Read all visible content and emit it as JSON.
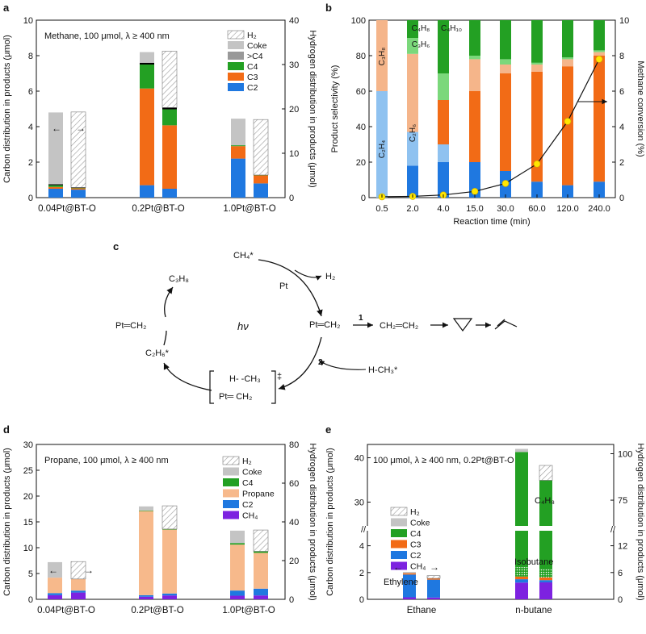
{
  "colors": {
    "H2": "#ffffff",
    "Coke": "#c4c4c4",
    "GtC4": "#000000",
    "C4": "#23a023",
    "C3": "#f26b16",
    "C2": "#1f78e0",
    "Propane": "#f7b98b",
    "CH4": "#7d22e0",
    "C3H8_light": "#f5b58a",
    "C2H6_light": "#8fc2f0",
    "C4H10_light": "#7bd87b",
    "marker": "#ffe600"
  },
  "chart_data": [
    {
      "panel": "a",
      "type": "bar",
      "annotation": "Methane, 100 μmol, λ ≥ 400 nm",
      "ylabel": "Carbon distribution in products (μmol)",
      "y2label": "Hydrogen distribution in products (μmol)",
      "ylim": [
        0,
        10
      ],
      "y2lim": [
        0,
        40
      ],
      "yticks": [
        "0",
        "2",
        "4",
        "6",
        "8",
        "10"
      ],
      "y2ticks": [
        "0",
        "10",
        "20",
        "30",
        "40"
      ],
      "categories": [
        "0.04Pt@BT-O",
        "0.2Pt@BT-O",
        "1.0Pt@BT-O"
      ],
      "legend": [
        "H2",
        "Coke",
        ">C4",
        "C4",
        "C3",
        "C2"
      ],
      "carbon_stacks": [
        {
          "C2": 0.5,
          "C3": 0.1,
          "C4": 0.1,
          "GtC4": 0.05,
          "Coke": 4.05
        },
        {
          "C2": 0.7,
          "C3": 5.45,
          "C4": 1.35,
          "GtC4": 0.1,
          "Coke": 0.6
        },
        {
          "C2": 2.2,
          "C3": 0.7,
          "C4": 0.05,
          "GtC4": 0,
          "Coke": 1.5
        }
      ],
      "hydrogen_stacks": [
        {
          "C2": 1.8,
          "C3": 0.3,
          "C4": 0.1,
          "GtC4": 0.1,
          "H2": 17.0
        },
        {
          "C2": 2.0,
          "C3": 14.3,
          "C4": 3.6,
          "GtC4": 0.4,
          "H2": 12.7
        },
        {
          "C2": 3.2,
          "C3": 1.8,
          "C4": 0.1,
          "GtC4": 0,
          "H2": 12.5
        }
      ],
      "arrow_left": "←",
      "arrow_right": "→"
    },
    {
      "panel": "b",
      "type": "bar+line",
      "xlabel": "Reaction time (min)",
      "ylabel": "Product selectivity (%)",
      "y2label": "Methane conversion (%)",
      "ylim": [
        0,
        100
      ],
      "y2lim": [
        0,
        10
      ],
      "yticks": [
        "0",
        "20",
        "40",
        "60",
        "80",
        "100"
      ],
      "y2ticks": [
        "0",
        "2",
        "4",
        "6",
        "8",
        "10"
      ],
      "categories": [
        "0.5",
        "2.0",
        "4.0",
        "15.0",
        "30.0",
        "60.0",
        "120.0",
        "240.0"
      ],
      "selectivity": [
        {
          "C2": 0,
          "C2H6": 60,
          "C3": 0,
          "C3H8": 40,
          "C4": 0,
          "C4H10": 0
        },
        {
          "C2": 18,
          "C2H6": 19,
          "C3": 0,
          "C3H8": 44,
          "C4": 10,
          "C4H10": 9
        },
        {
          "C2": 20,
          "C2H6": 10,
          "C3": 25,
          "C3H8": 0,
          "C4": 30,
          "C4H10": 15
        },
        {
          "C2": 20,
          "C2H6": 0,
          "C3": 40,
          "C3H8": 18,
          "C4": 20,
          "C4H10": 2
        },
        {
          "C2": 15,
          "C2H6": 0,
          "C3": 55,
          "C3H8": 5,
          "C4": 22,
          "C4H10": 3
        },
        {
          "C2": 9,
          "C2H6": 0,
          "C3": 62,
          "C3H8": 4,
          "C4": 24,
          "C4H10": 1
        },
        {
          "C2": 7,
          "C2H6": 0,
          "C3": 67,
          "C3H8": 4,
          "C4": 21,
          "C4H10": 1
        },
        {
          "C2": 9,
          "C2H6": 0,
          "C3": 71,
          "C3H8": 2,
          "C4": 17,
          "C4H10": 1
        }
      ],
      "conversion": [
        0.05,
        0.07,
        0.15,
        0.35,
        0.8,
        1.9,
        4.3,
        7.8
      ],
      "bar_labels": [
        {
          "text": "C₃H₈"
        },
        {
          "text": "C₂H₆"
        },
        {
          "text": "C₄H₈"
        },
        {
          "text": "C₃H₆"
        },
        {
          "text": "C₂H₄"
        },
        {
          "text": "C₄H₁₀"
        }
      ]
    },
    {
      "panel": "d",
      "type": "bar",
      "annotation": "Propane, 100 μmol, λ ≥ 400 nm",
      "ylabel": "Carbon distribution in products (μmol)",
      "y2label": "Hydrogen distribution in products (μmol)",
      "ylim": [
        0,
        30
      ],
      "y2lim": [
        0,
        80
      ],
      "yticks": [
        "0",
        "5",
        "10",
        "15",
        "20",
        "25",
        "30"
      ],
      "y2ticks": [
        "0",
        "20",
        "40",
        "60",
        "80"
      ],
      "categories": [
        "0.04Pt@BT-O",
        "0.2Pt@BT-O",
        "1.0Pt@BT-O"
      ],
      "legend": [
        "H2",
        "Coke",
        "C4",
        "Propane",
        "C2",
        "CH4"
      ],
      "carbon_stacks": [
        {
          "CH4": 0.8,
          "C2": 0.4,
          "Propane": 3.0,
          "C4": 0,
          "Coke": 3.0
        },
        {
          "CH4": 0.5,
          "C2": 0.3,
          "Propane": 16.3,
          "C4": 0.1,
          "Coke": 0.8
        },
        {
          "CH4": 0.7,
          "C2": 1.0,
          "Propane": 8.9,
          "C4": 0.3,
          "Coke": 2.4
        }
      ],
      "hydrogen_stacks": [
        {
          "CH4": 3.5,
          "C2": 1.0,
          "Propane": 6.0,
          "C4": 0,
          "H2": 9.0
        },
        {
          "CH4": 2.0,
          "C2": 1.0,
          "Propane": 33.0,
          "C4": 0.3,
          "H2": 12.0
        },
        {
          "CH4": 2.0,
          "C2": 3.5,
          "Propane": 18.5,
          "C4": 0.8,
          "H2": 11.0
        }
      ],
      "arrow_left": "←",
      "arrow_right": "→"
    },
    {
      "panel": "e",
      "type": "bar",
      "annotation": "100 μmol, λ ≥ 400 nm, 0.2Pt@BT-O",
      "ylabel": "Carbon distribution in products (μmol)",
      "y2label": "Hydrogen distribution in products (μmol)",
      "yticks": [
        "0",
        "2",
        "4",
        "30",
        "40"
      ],
      "y2ticks": [
        "0",
        "6",
        "12",
        "75",
        "100"
      ],
      "categories": [
        "Ethane",
        "n-butane"
      ],
      "legend": [
        "H2",
        "Coke",
        "C4",
        "C3",
        "C2",
        "CH4"
      ],
      "carbon_stacks": [
        {
          "CH4": 0.15,
          "C2": 1.7,
          "C3": 0.1,
          "C4": 0,
          "Coke": 0.1
        },
        {
          "CH4": 1.25,
          "C2": 0.25,
          "C3": 0.2,
          "Isobutane": 0.7,
          "C4": 38.9,
          "Coke": 0.7
        }
      ],
      "hydrogen_stacks": [
        {
          "CH4": 0.4,
          "C2": 4.0,
          "C3": 0.3,
          "C4": 0,
          "H2": 0.6
        },
        {
          "CH4": 3.8,
          "C2": 0.5,
          "C3": 0.6,
          "Isobutane": 1.8,
          "C4": 79.0,
          "H2": 8.0
        }
      ],
      "annotations": [
        "Ethylene",
        "Isobutane",
        "C₄H₈"
      ],
      "arrow_left": "←",
      "arrow_right": "→"
    }
  ],
  "panel_letters": [
    "a",
    "b",
    "c",
    "d",
    "e"
  ],
  "scheme": {
    "ch4_top": "CH₄*",
    "h2": "H₂",
    "pt": "Pt",
    "pt_ch2_right": "Pt═CH₂",
    "pt_ch2_left": "Pt═CH₂",
    "c3h8": "C₃H₈",
    "c2h6": "C₂H₆*",
    "hv": "hν",
    "step1": "1",
    "step2": "2",
    "ethylene": "CH₂═CH₂",
    "hch3": "H-CH₃*",
    "ts_top": "H-  -CH₃",
    "ts_bottom": "Pt═   CH₂",
    "ts_dagger": "‡"
  }
}
